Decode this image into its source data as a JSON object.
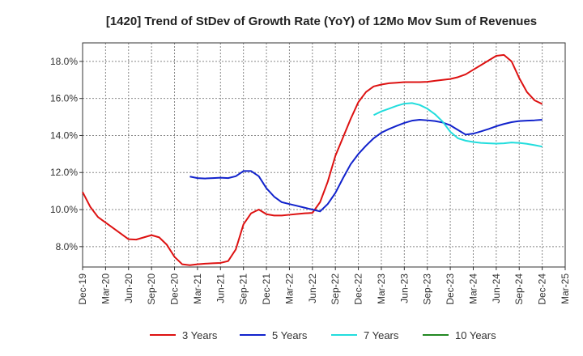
{
  "chart_data": {
    "type": "line",
    "title": "[1420]  Trend of StDev of Growth Rate (YoY) of 12Mo Mov Sum of Revenues",
    "xlabel": "",
    "ylabel": "",
    "ylim": [
      6.9,
      19.0
    ],
    "yticks": [
      8.0,
      10.0,
      12.0,
      14.0,
      16.0,
      18.0
    ],
    "ytick_labels": [
      "8.0%",
      "10.0%",
      "12.0%",
      "14.0%",
      "16.0%",
      "18.0%"
    ],
    "xtick_labels": [
      "Dec-19",
      "Mar-20",
      "Jun-20",
      "Sep-20",
      "Dec-20",
      "Mar-21",
      "Jun-21",
      "Sep-21",
      "Dec-21",
      "Mar-22",
      "Jun-22",
      "Sep-22",
      "Dec-22",
      "Mar-23",
      "Jun-23",
      "Sep-23",
      "Dec-23",
      "Mar-24",
      "Jun-24",
      "Sep-24",
      "Dec-24",
      "Mar-25"
    ],
    "grid": true,
    "legend_position": "bottom",
    "series": [
      {
        "name": "3 Years",
        "color": "#dd1111",
        "values": [
          10.95,
          10.15,
          9.6,
          9.3,
          9.0,
          8.7,
          8.4,
          8.38,
          8.5,
          8.62,
          8.5,
          8.1,
          7.45,
          7.05,
          7.0,
          7.05,
          7.08,
          7.1,
          7.12,
          7.22,
          7.85,
          9.2,
          9.8,
          10.0,
          9.75,
          9.68,
          9.68,
          9.72,
          9.76,
          9.8,
          9.82,
          10.4,
          11.5,
          12.9,
          13.9,
          14.9,
          15.8,
          16.35,
          16.65,
          16.75,
          16.82,
          16.85,
          16.88,
          16.88,
          16.88,
          16.9,
          16.95,
          17.0,
          17.05,
          17.15,
          17.3,
          17.55,
          17.8,
          18.05,
          18.3,
          18.35,
          18.0,
          17.1,
          16.35,
          15.9,
          15.7
        ]
      },
      {
        "name": "5 Years",
        "color": "#1122cc",
        "values": [
          null,
          null,
          null,
          null,
          null,
          null,
          null,
          null,
          null,
          null,
          null,
          null,
          null,
          null,
          11.78,
          11.7,
          11.68,
          11.7,
          11.72,
          11.7,
          11.8,
          12.08,
          12.08,
          11.8,
          11.15,
          10.7,
          10.4,
          10.3,
          10.2,
          10.1,
          10.0,
          9.9,
          10.3,
          10.9,
          11.7,
          12.45,
          13.0,
          13.45,
          13.85,
          14.15,
          14.35,
          14.52,
          14.68,
          14.8,
          14.85,
          14.82,
          14.78,
          14.7,
          14.55,
          14.3,
          14.05,
          14.1,
          14.22,
          14.35,
          14.5,
          14.62,
          14.72,
          14.78,
          14.8,
          14.82,
          14.85
        ]
      },
      {
        "name": "7 Years",
        "color": "#22dddd",
        "values": [
          null,
          null,
          null,
          null,
          null,
          null,
          null,
          null,
          null,
          null,
          null,
          null,
          null,
          null,
          null,
          null,
          null,
          null,
          null,
          null,
          null,
          null,
          null,
          null,
          null,
          null,
          null,
          null,
          null,
          null,
          null,
          null,
          null,
          null,
          null,
          null,
          null,
          null,
          15.1,
          15.3,
          15.45,
          15.6,
          15.72,
          15.75,
          15.65,
          15.45,
          15.15,
          14.75,
          14.2,
          13.85,
          13.72,
          13.65,
          13.6,
          13.58,
          13.56,
          13.58,
          13.62,
          13.6,
          13.55,
          13.48,
          13.4
        ]
      },
      {
        "name": "10 Years",
        "color": "#228822",
        "values": []
      }
    ]
  }
}
